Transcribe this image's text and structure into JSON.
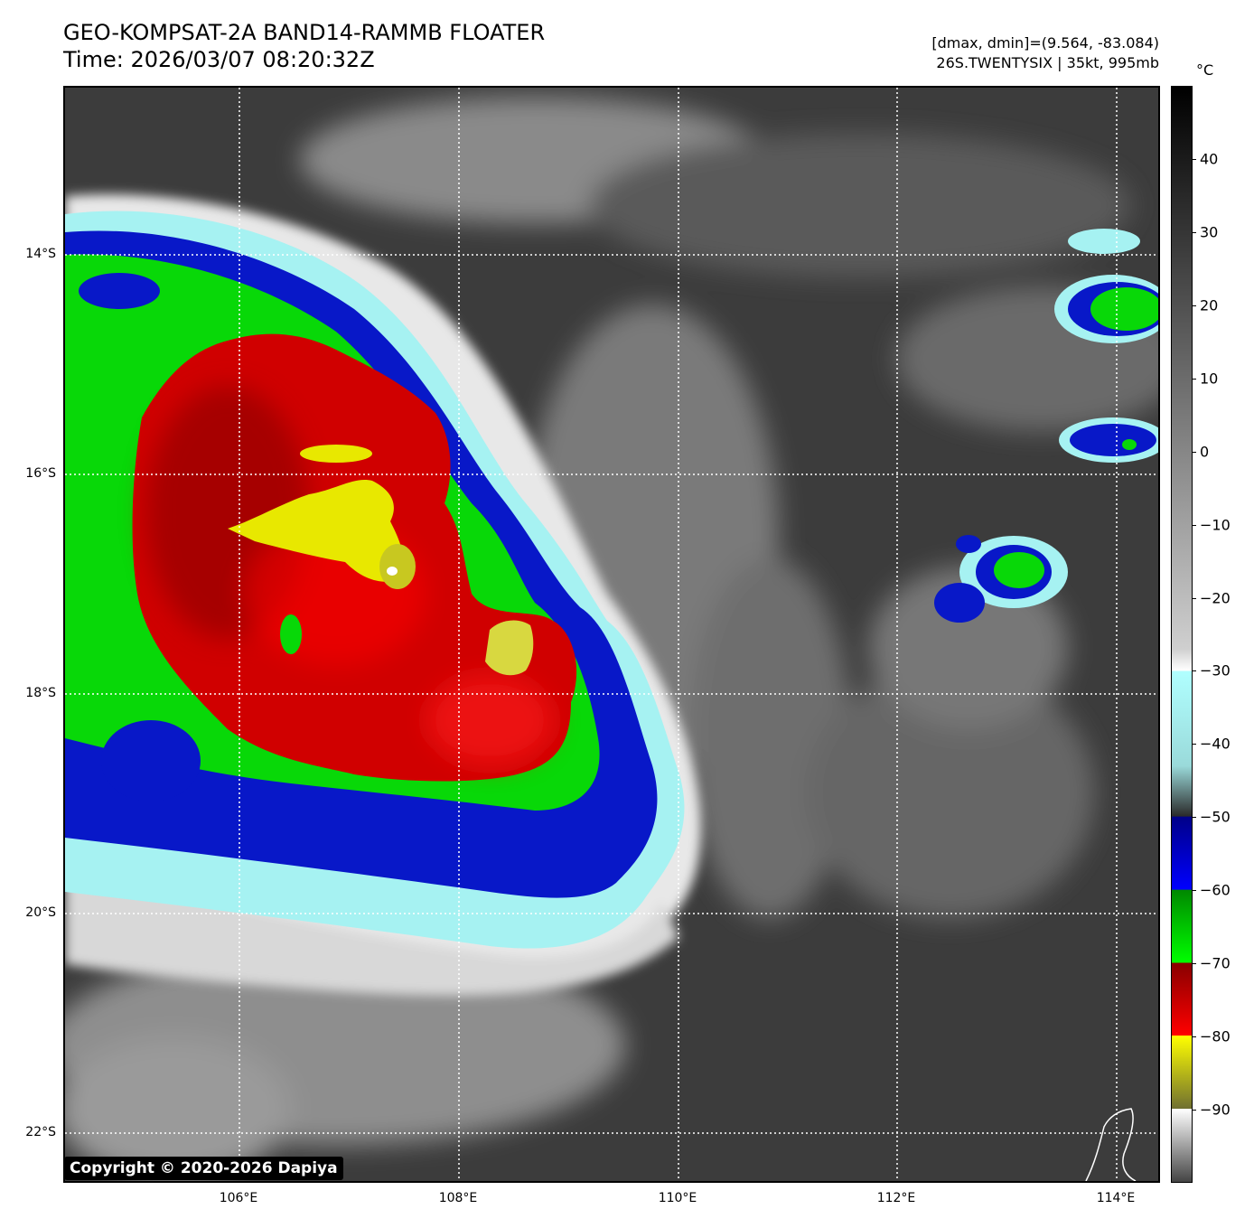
{
  "header": {
    "title_line1": "GEO-KOMPSAT-2A BAND14-RAMMB FLOATER",
    "title_line2": "Time: 2026/03/07 08:20:32Z",
    "info_line1": "[dmax, dmin]=(9.564, -83.084)",
    "info_line2": "26S.TWENTYSIX | 35kt, 995mb"
  },
  "map": {
    "lat_labels": [
      "14°S",
      "16°S",
      "18°S",
      "20°S",
      "22°S"
    ],
    "lon_labels": [
      "106°E",
      "108°E",
      "110°E",
      "112°E",
      "114°E"
    ],
    "copyright": "Copyright © 2020-2026 Dapiya"
  },
  "colorbar": {
    "unit": "°C",
    "ticks": [
      "40",
      "30",
      "20",
      "10",
      "0",
      "−10",
      "−20",
      "−30",
      "−40",
      "−50",
      "−60",
      "−70",
      "−80",
      "−90"
    ],
    "tick_values": [
      40,
      30,
      20,
      10,
      0,
      -10,
      -20,
      -30,
      -40,
      -50,
      -60,
      -70,
      -80,
      -90
    ],
    "vmin": -100,
    "vmax": 50
  }
}
